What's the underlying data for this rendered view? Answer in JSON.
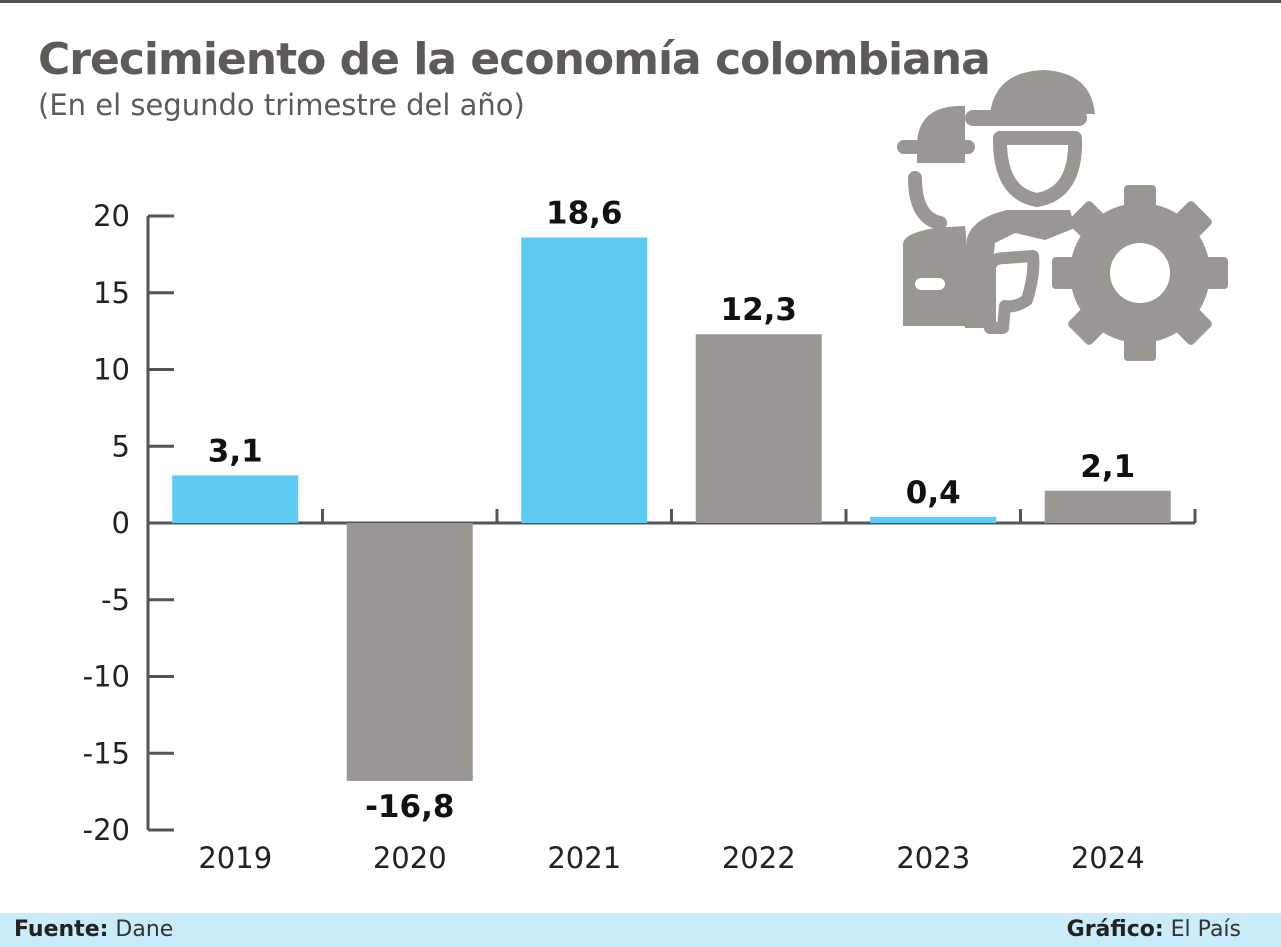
{
  "header": {
    "title": "Crecimiento de la economía colombiana",
    "subtitle": "(En el segundo trimestre del año)"
  },
  "footer": {
    "source_label": "Fuente:",
    "source_value": "Dane",
    "credit_label": "Gráfico:",
    "credit_value": "El País"
  },
  "illustration": {
    "icons": [
      "worker-helmet-icon",
      "gear-icon"
    ],
    "color": "#9a9692"
  },
  "colors": {
    "highlight": "#5ecbf3",
    "neutral": "#9a9692",
    "axis": "#555555"
  },
  "chart_data": {
    "type": "bar",
    "title": "Crecimiento de la economía colombiana",
    "subtitle": "(En el segundo trimestre del año)",
    "categories": [
      "2019",
      "2020",
      "2021",
      "2022",
      "2023",
      "2024"
    ],
    "values": [
      3.1,
      -16.8,
      18.6,
      12.3,
      0.4,
      2.1
    ],
    "data_labels": [
      "3,1",
      "-16,8",
      "18,6",
      "12,3",
      "0,4",
      "2,1"
    ],
    "bar_colors": [
      "#5ecbf3",
      "#9a9692",
      "#5ecbf3",
      "#9a9692",
      "#5ecbf3",
      "#9a9692"
    ],
    "ylim": [
      -20,
      20
    ],
    "yticks": [
      20,
      15,
      10,
      5,
      0,
      -5,
      -10,
      -15,
      -20
    ],
    "ytick_labels": [
      "20",
      "15",
      "10",
      "5",
      "0",
      "-5",
      "-10",
      "-15",
      "-20"
    ],
    "grid": false,
    "legend": "none"
  }
}
